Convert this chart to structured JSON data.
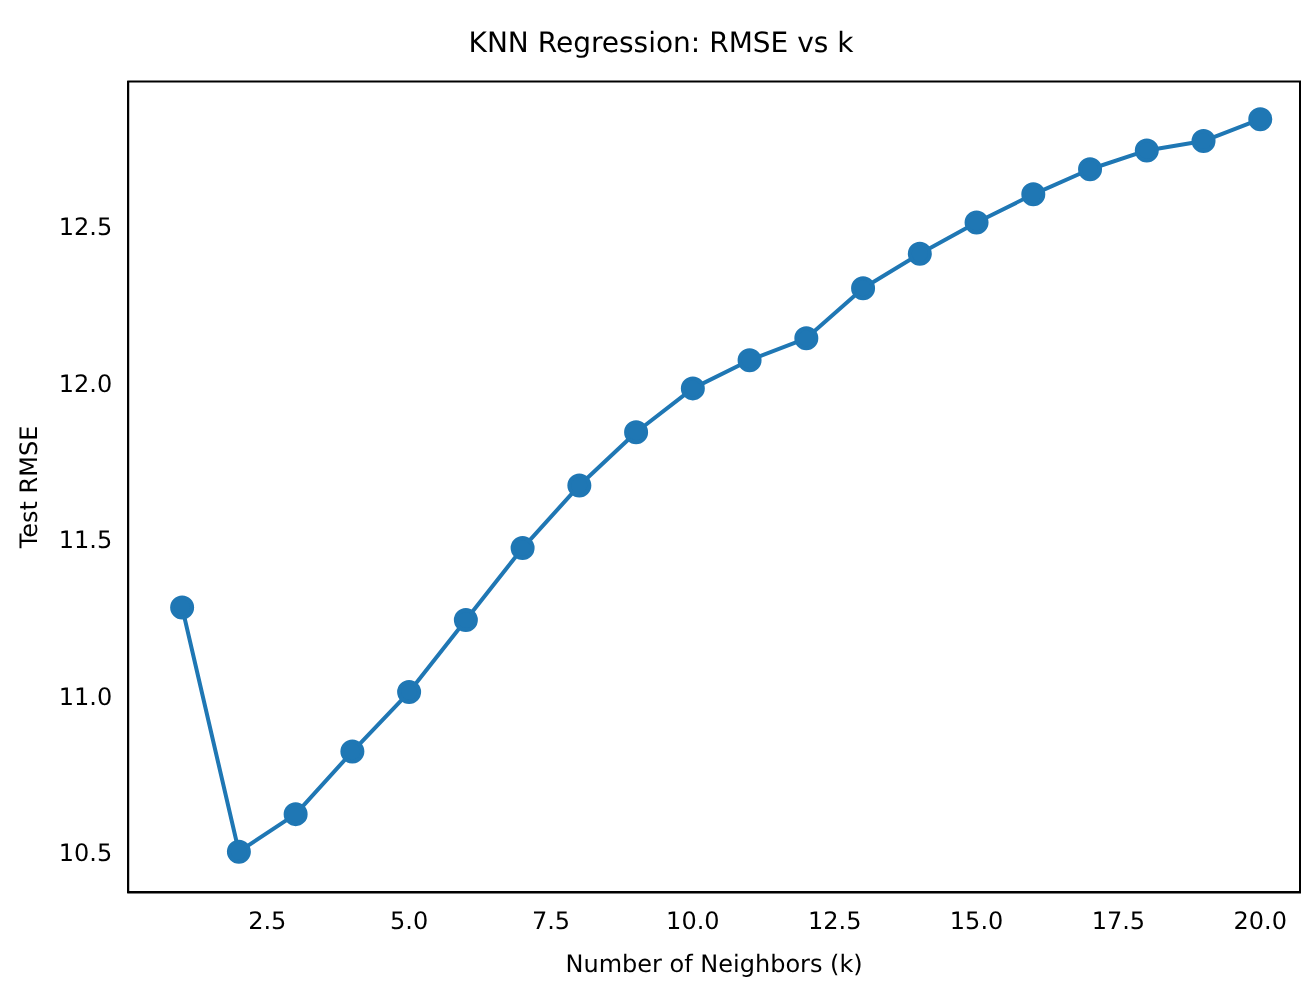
{
  "chart_data": {
    "type": "line",
    "title": "KNN Regression: RMSE vs k",
    "xlabel": "Number of Neighbors (k)",
    "ylabel": "Test RMSE",
    "x": [
      1,
      2,
      3,
      4,
      5,
      6,
      7,
      8,
      9,
      10,
      11,
      12,
      13,
      14,
      15,
      16,
      17,
      18,
      19,
      20
    ],
    "series": [
      {
        "color": "#1f77b4",
        "values": [
          11.29,
          10.51,
          10.63,
          10.83,
          11.02,
          11.25,
          11.48,
          11.68,
          11.85,
          11.99,
          12.08,
          12.15,
          12.31,
          12.42,
          12.52,
          12.61,
          12.69,
          12.75,
          12.78,
          12.85
        ]
      }
    ],
    "xlim": [
      0.05,
      20.7
    ],
    "ylim": [
      10.38,
      12.97
    ],
    "xticks": [
      2.5,
      {
        "value": 5,
        "label": "5.0"
      },
      7.5,
      {
        "value": 10,
        "label": "10.0"
      },
      12.5,
      {
        "value": 15,
        "label": "15.0"
      },
      17.5,
      {
        "value": 20,
        "label": "20.0"
      }
    ],
    "yticks": [
      10.5,
      {
        "value": 11,
        "label": "11.0"
      },
      11.5,
      {
        "value": 12,
        "label": "12.0"
      },
      12.5
    ],
    "grid": false,
    "legend": false,
    "marker": "circle",
    "line_style": "solid"
  }
}
